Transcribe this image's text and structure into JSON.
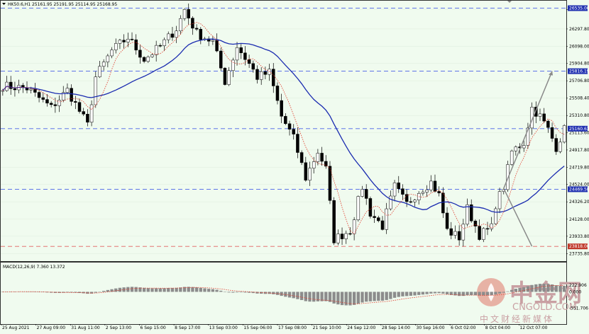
{
  "header": {
    "symbol_line": "HK50.6,H1  25161.95 25191.95 25114.95 25168.95"
  },
  "macd_label": "MACD(12,26,9) 7.360 13.372",
  "watermark": {
    "brand": "中金网",
    "domain": "CNGOLD.COM",
    "tagline": "中文财经新媒体"
  },
  "colors": {
    "background": "#f0fbef",
    "candle": "#000000",
    "ma_slow": "#1a2bb0",
    "ma_fast": "#e03a2a",
    "hline": "#4a62e6",
    "support_line": "#e26060",
    "projection": "#8a8a8a",
    "tag_bg": "#1f2fb0"
  },
  "chart_data": {
    "type": "candlestick",
    "price_axis": {
      "ylim": [
        23650,
        26620
      ],
      "ticks": [
        "26520.5",
        "26297.80",
        "26098.00",
        "25904.80",
        "25706.80",
        "25508.40",
        "25310.80",
        "25113.60",
        "24917.80",
        "24719.80",
        "24524.00",
        "24326.20",
        "24128.00",
        "23933.80",
        "23735.80"
      ]
    },
    "time_axis": {
      "labels": [
        "25 Aug 2021",
        "27 Aug 09:00",
        "31 Aug 11:00",
        "2 Sep 13:00",
        "6 Sep 15:00",
        "8 Sep 17:00",
        "13 Sep 03:00",
        "15 Sep 06:00",
        "17 Sep 08:00",
        "21 Sep 10:00",
        "24 Sep 12:00",
        "28 Sep 14:00",
        "30 Sep 16:00",
        "6 Oct 02:00",
        "8 Oct 04:00",
        "12 Oct 07:00"
      ]
    },
    "horizontal_levels": [
      {
        "value": 26535.0,
        "label": "26535.00"
      },
      {
        "value": 25816.19,
        "label": "25816.19"
      },
      {
        "value": 25160.63,
        "label": "25160.63"
      },
      {
        "value": 24469.58,
        "label": "24469.58"
      },
      {
        "value": 23818.0,
        "label": "23818.00"
      }
    ],
    "moving_averages": [
      "slow (blue)",
      "fast (red dotted)"
    ],
    "path": [
      [
        0,
        25650
      ],
      [
        6,
        25620
      ],
      [
        12,
        25400
      ],
      [
        16,
        25600
      ],
      [
        21,
        25200
      ],
      [
        23,
        25750
      ],
      [
        27,
        26050
      ],
      [
        31,
        26200
      ],
      [
        35,
        25950
      ],
      [
        39,
        26100
      ],
      [
        43,
        26300
      ],
      [
        45,
        26520
      ],
      [
        48,
        26250
      ],
      [
        52,
        26150
      ],
      [
        55,
        25700
      ],
      [
        58,
        26100
      ],
      [
        61,
        25900
      ],
      [
        63,
        25750
      ],
      [
        66,
        25800
      ],
      [
        69,
        25300
      ],
      [
        72,
        25050
      ],
      [
        75,
        24600
      ],
      [
        78,
        24900
      ],
      [
        80,
        24700
      ],
      [
        82,
        23900
      ],
      [
        86,
        24000
      ],
      [
        89,
        24500
      ],
      [
        91,
        24200
      ],
      [
        94,
        24050
      ],
      [
        97,
        24500
      ],
      [
        100,
        24300
      ],
      [
        103,
        24450
      ],
      [
        106,
        24550
      ],
      [
        108,
        24400
      ],
      [
        110,
        24000
      ],
      [
        113,
        23920
      ],
      [
        115,
        24250
      ],
      [
        118,
        23950
      ],
      [
        121,
        24030
      ],
      [
        122,
        24300
      ],
      [
        124,
        24500
      ],
      [
        126,
        24900
      ],
      [
        129,
        25000
      ],
      [
        131,
        25400
      ],
      [
        133,
        25300
      ],
      [
        135,
        25150
      ],
      [
        137,
        24950
      ],
      [
        139,
        25150
      ]
    ],
    "macd_panel": {
      "ylim": [
        -1100,
        1000
      ],
      "axis_labels": [
        "222.906",
        "0.000",
        "-551.706"
      ],
      "axis_label_values": [
        222.906,
        0,
        -551.706
      ]
    }
  }
}
